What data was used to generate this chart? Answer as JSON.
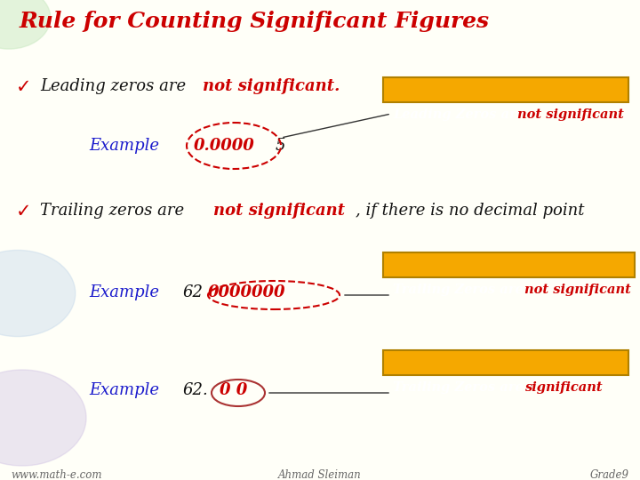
{
  "title": "Rule for Counting Significant Figures",
  "title_color": "#cc0000",
  "bg_color": "#fffff8",
  "bullet_color": "#cc0000",
  "example_color": "#1a1acc",
  "circle_color": "#cc0000",
  "label1_bg": "#f5a800",
  "label2_bg": "#f5a800",
  "label3_bg": "#f5a800",
  "footer_left": "www.math-e.com",
  "footer_center": "Ahmad Sleiman",
  "footer_right": "Grade9",
  "footer_color": "#666666",
  "text_black": "#111111",
  "red": "#cc0000",
  "blue": "#1a1acc",
  "white": "#ffffff",
  "gray": "#888888"
}
